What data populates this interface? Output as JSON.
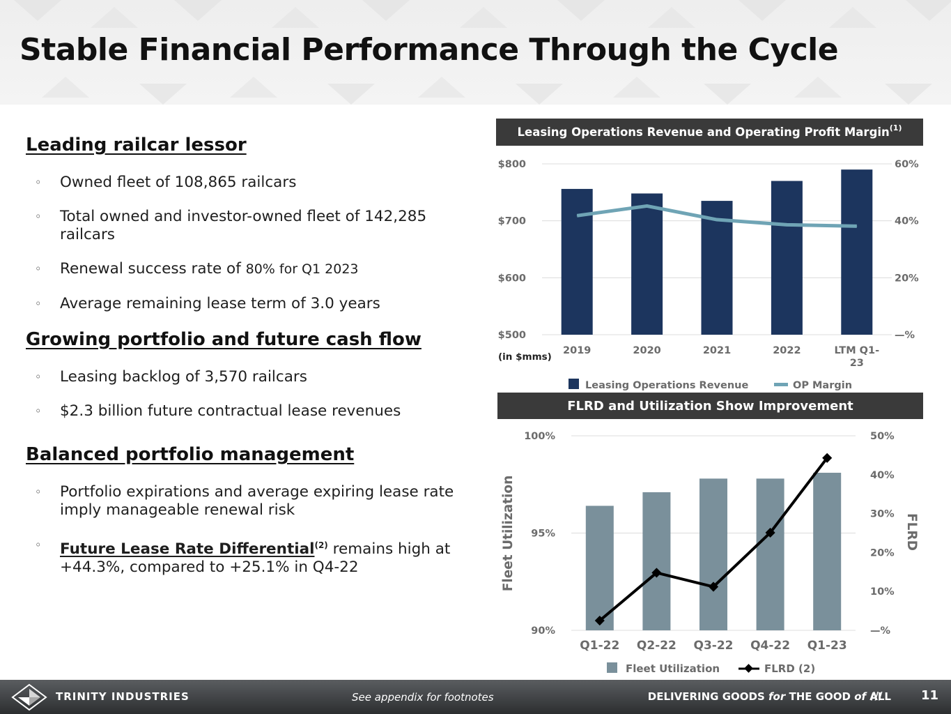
{
  "title": "Stable Financial Performance Through the Cycle",
  "sections": [
    {
      "heading": "Leading railcar lessor",
      "bullets": [
        {
          "text": "Owned fleet of 108,865 railcars"
        },
        {
          "text": "Total owned and investor-owned fleet of 142,285 railcars"
        },
        {
          "text_a": "Renewal success rate of ",
          "text_b": "80% for Q1 2023"
        },
        {
          "text": "Average remaining lease term of 3.0 years"
        }
      ]
    },
    {
      "heading": "Growing portfolio and future cash flow",
      "bullets": [
        {
          "text": "Leasing backlog of 3,570 railcars"
        },
        {
          "text": "$2.3 billion future contractual lease revenues"
        }
      ]
    },
    {
      "heading": "Balanced portfolio management",
      "bullets": [
        {
          "text": "Portfolio expirations and average expiring lease rate imply manageable renewal risk"
        },
        {
          "bold": "Future Lease Rate Differential",
          "sup": "(2)",
          "rest": " remains high at +44.3%, compared to +25.1% in Q4-22"
        }
      ]
    }
  ],
  "bullet_glyph": "◦",
  "chart_data": [
    {
      "type": "bar",
      "title": "Leasing Operations Revenue and Operating Profit Margin",
      "title_sup": "(1)",
      "categories": [
        "2019",
        "2020",
        "2021",
        "2022",
        "LTM Q1-23"
      ],
      "category_lines": [
        [
          "2019"
        ],
        [
          "2020"
        ],
        [
          "2021"
        ],
        [
          "2022"
        ],
        [
          "LTM Q1-",
          "23"
        ]
      ],
      "unit_note": "(in $mms)",
      "y_left": {
        "min": 500,
        "max": 800,
        "ticks": [
          "$800",
          "$700",
          "$600",
          "$500"
        ],
        "tick_values": [
          800,
          700,
          600,
          500
        ]
      },
      "y_right": {
        "min": 0,
        "max": 60,
        "ticks": [
          "60%",
          "40%",
          "20%",
          "—%"
        ],
        "tick_values": [
          60,
          40,
          20,
          0
        ]
      },
      "series": [
        {
          "name": "Leasing Operations Revenue",
          "type": "bar",
          "axis": "left",
          "color": "#1c355e",
          "values": [
            756,
            748,
            735,
            770,
            790
          ]
        },
        {
          "name": "OP Margin",
          "type": "line",
          "axis": "right",
          "color": "#6fa4b5",
          "values": [
            41.8,
            45.2,
            40.4,
            38.6,
            38.1
          ]
        }
      ],
      "grid": true,
      "legend": "bottom"
    },
    {
      "type": "bar",
      "title": "FLRD and Utilization Show Improvement",
      "categories": [
        "Q1-22",
        "Q2-22",
        "Q3-22",
        "Q4-22",
        "Q1-23"
      ],
      "y_left": {
        "label": "Fleet Utilization",
        "min": 90,
        "max": 100,
        "ticks": [
          "100%",
          "95%",
          "90%"
        ],
        "tick_values": [
          100,
          95,
          90
        ]
      },
      "y_right": {
        "label": "FLRD",
        "min": 0,
        "max": 50,
        "ticks": [
          "50%",
          "40%",
          "30%",
          "20%",
          "10%",
          "—%"
        ],
        "tick_values": [
          50,
          40,
          30,
          20,
          10,
          0
        ]
      },
      "series": [
        {
          "name": "Fleet Utilization",
          "type": "bar",
          "axis": "left",
          "color": "#7a909b",
          "values": [
            96.4,
            97.1,
            97.8,
            97.8,
            98.1
          ]
        },
        {
          "name": "FLRD (2)",
          "type": "line",
          "axis": "right",
          "color": "#000000",
          "values": [
            2.5,
            14.8,
            11.2,
            25.1,
            44.3
          ]
        }
      ],
      "grid": true,
      "legend": "bottom"
    }
  ],
  "footer": {
    "brand": "TRINITY INDUSTRIES",
    "note": "See appendix for footnotes",
    "tag_a": "DELIVERING GOODS ",
    "tag_for": "for",
    "tag_b": " THE GOOD ",
    "tag_of": "of",
    "tag_c": " ALL",
    "slashes": "///",
    "page_number": "11"
  }
}
